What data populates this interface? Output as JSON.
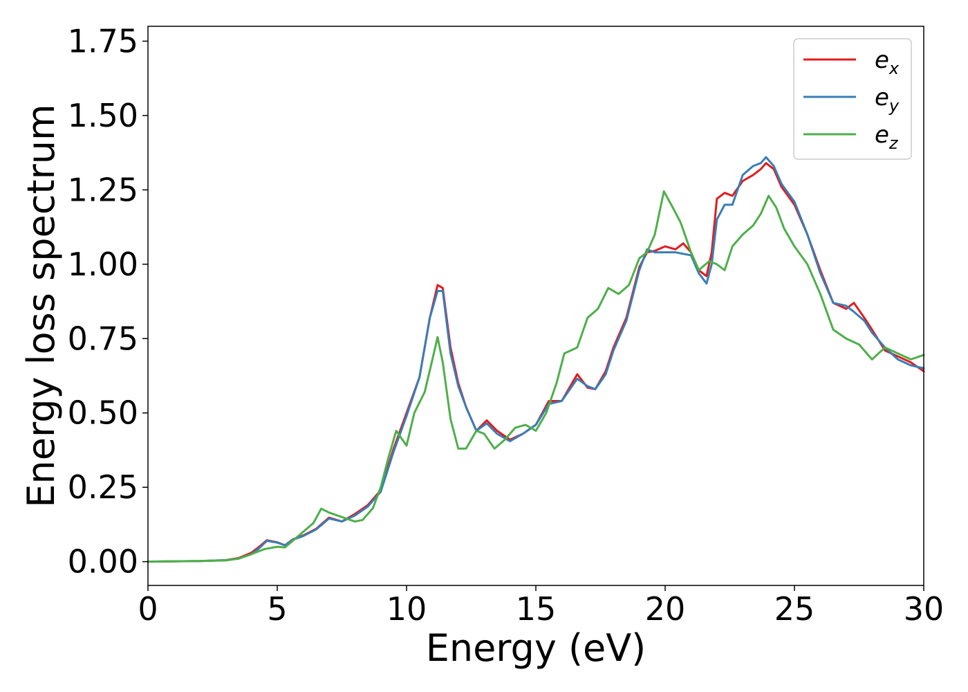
{
  "chart_data": {
    "type": "line",
    "title": "",
    "xlabel": "Energy (eV)",
    "ylabel": "Energy loss spectrum",
    "xlim": [
      0,
      30
    ],
    "ylim": [
      -0.08,
      1.8
    ],
    "xticks": [
      0,
      5,
      10,
      15,
      20,
      25,
      30
    ],
    "xtick_labels": [
      "0",
      "5",
      "10",
      "15",
      "20",
      "25",
      "30"
    ],
    "yticks": [
      0.0,
      0.25,
      0.5,
      0.75,
      1.0,
      1.25,
      1.5,
      1.75
    ],
    "ytick_labels": [
      "0.00",
      "0.25",
      "0.50",
      "0.75",
      "1.00",
      "1.25",
      "1.50",
      "1.75"
    ],
    "grid": false,
    "legend_position": "top-right",
    "series": [
      {
        "name": "e_x",
        "label_base": "e",
        "label_sub": "x",
        "color": "#e41a1c",
        "points": [
          [
            0,
            0
          ],
          [
            2,
            0.002
          ],
          [
            3,
            0.005
          ],
          [
            3.5,
            0.012
          ],
          [
            4,
            0.03
          ],
          [
            4.3,
            0.05
          ],
          [
            4.6,
            0.072
          ],
          [
            5,
            0.065
          ],
          [
            5.3,
            0.055
          ],
          [
            5.6,
            0.075
          ],
          [
            6,
            0.088
          ],
          [
            6.5,
            0.11
          ],
          [
            7,
            0.148
          ],
          [
            7.5,
            0.135
          ],
          [
            8,
            0.16
          ],
          [
            8.5,
            0.19
          ],
          [
            9,
            0.24
          ],
          [
            9.5,
            0.38
          ],
          [
            10,
            0.5
          ],
          [
            10.5,
            0.62
          ],
          [
            10.9,
            0.82
          ],
          [
            11.2,
            0.93
          ],
          [
            11.4,
            0.92
          ],
          [
            11.7,
            0.72
          ],
          [
            12,
            0.6
          ],
          [
            12.3,
            0.52
          ],
          [
            12.7,
            0.44
          ],
          [
            13.1,
            0.475
          ],
          [
            13.5,
            0.44
          ],
          [
            14,
            0.41
          ],
          [
            14.5,
            0.43
          ],
          [
            15,
            0.46
          ],
          [
            15.5,
            0.54
          ],
          [
            16,
            0.54
          ],
          [
            16.6,
            0.63
          ],
          [
            17,
            0.585
          ],
          [
            17.3,
            0.58
          ],
          [
            17.7,
            0.64
          ],
          [
            18,
            0.72
          ],
          [
            18.5,
            0.82
          ],
          [
            19,
            0.99
          ],
          [
            19.3,
            1.04
          ],
          [
            19.6,
            1.045
          ],
          [
            20,
            1.06
          ],
          [
            20.4,
            1.05
          ],
          [
            20.7,
            1.07
          ],
          [
            21,
            1.04
          ],
          [
            21.3,
            0.98
          ],
          [
            21.6,
            0.96
          ],
          [
            21.8,
            1.04
          ],
          [
            22,
            1.22
          ],
          [
            22.3,
            1.24
          ],
          [
            22.6,
            1.23
          ],
          [
            23,
            1.28
          ],
          [
            23.4,
            1.3
          ],
          [
            23.7,
            1.32
          ],
          [
            23.9,
            1.34
          ],
          [
            24.2,
            1.32
          ],
          [
            24.5,
            1.26
          ],
          [
            25,
            1.2
          ],
          [
            25.5,
            1.1
          ],
          [
            26,
            0.98
          ],
          [
            26.5,
            0.87
          ],
          [
            27,
            0.85
          ],
          [
            27.3,
            0.87
          ],
          [
            27.7,
            0.82
          ],
          [
            28,
            0.78
          ],
          [
            28.5,
            0.71
          ],
          [
            29,
            0.69
          ],
          [
            29.5,
            0.67
          ],
          [
            30,
            0.64
          ]
        ]
      },
      {
        "name": "e_y",
        "label_base": "e",
        "label_sub": "y",
        "color": "#377eb8",
        "points": [
          [
            0,
            0
          ],
          [
            2,
            0.002
          ],
          [
            3,
            0.005
          ],
          [
            3.5,
            0.01
          ],
          [
            4,
            0.025
          ],
          [
            4.3,
            0.045
          ],
          [
            4.6,
            0.07
          ],
          [
            5,
            0.064
          ],
          [
            5.3,
            0.055
          ],
          [
            5.6,
            0.074
          ],
          [
            6,
            0.086
          ],
          [
            6.5,
            0.108
          ],
          [
            7,
            0.145
          ],
          [
            7.5,
            0.135
          ],
          [
            8,
            0.155
          ],
          [
            8.5,
            0.185
          ],
          [
            9,
            0.235
          ],
          [
            9.5,
            0.37
          ],
          [
            10,
            0.49
          ],
          [
            10.5,
            0.62
          ],
          [
            10.9,
            0.82
          ],
          [
            11.2,
            0.91
          ],
          [
            11.4,
            0.91
          ],
          [
            11.7,
            0.7
          ],
          [
            12,
            0.59
          ],
          [
            12.3,
            0.52
          ],
          [
            12.7,
            0.44
          ],
          [
            13.1,
            0.465
          ],
          [
            13.5,
            0.43
          ],
          [
            14,
            0.405
          ],
          [
            14.5,
            0.43
          ],
          [
            15,
            0.46
          ],
          [
            15.5,
            0.53
          ],
          [
            16,
            0.54
          ],
          [
            16.6,
            0.615
          ],
          [
            17,
            0.59
          ],
          [
            17.3,
            0.58
          ],
          [
            17.7,
            0.63
          ],
          [
            18,
            0.71
          ],
          [
            18.5,
            0.81
          ],
          [
            19,
            0.98
          ],
          [
            19.3,
            1.05
          ],
          [
            19.6,
            1.04
          ],
          [
            20,
            1.04
          ],
          [
            20.4,
            1.04
          ],
          [
            20.7,
            1.035
          ],
          [
            21,
            1.03
          ],
          [
            21.3,
            0.97
          ],
          [
            21.6,
            0.935
          ],
          [
            21.8,
            1.0
          ],
          [
            22,
            1.15
          ],
          [
            22.3,
            1.2
          ],
          [
            22.6,
            1.2
          ],
          [
            23,
            1.3
          ],
          [
            23.4,
            1.33
          ],
          [
            23.7,
            1.34
          ],
          [
            23.9,
            1.36
          ],
          [
            24.2,
            1.33
          ],
          [
            24.5,
            1.27
          ],
          [
            25,
            1.21
          ],
          [
            25.5,
            1.1
          ],
          [
            26,
            0.97
          ],
          [
            26.5,
            0.87
          ],
          [
            27,
            0.86
          ],
          [
            27.3,
            0.84
          ],
          [
            27.7,
            0.81
          ],
          [
            28,
            0.77
          ],
          [
            28.5,
            0.72
          ],
          [
            29,
            0.68
          ],
          [
            29.5,
            0.66
          ],
          [
            30,
            0.65
          ]
        ]
      },
      {
        "name": "e_z",
        "label_base": "e",
        "label_sub": "z",
        "color": "#4daf4a",
        "points": [
          [
            0,
            0
          ],
          [
            2,
            0.002
          ],
          [
            3,
            0.004
          ],
          [
            3.5,
            0.01
          ],
          [
            4,
            0.025
          ],
          [
            4.5,
            0.042
          ],
          [
            5,
            0.05
          ],
          [
            5.3,
            0.048
          ],
          [
            5.6,
            0.07
          ],
          [
            6,
            0.1
          ],
          [
            6.4,
            0.13
          ],
          [
            6.7,
            0.178
          ],
          [
            7,
            0.165
          ],
          [
            7.5,
            0.15
          ],
          [
            8,
            0.135
          ],
          [
            8.3,
            0.14
          ],
          [
            8.7,
            0.18
          ],
          [
            9,
            0.25
          ],
          [
            9.3,
            0.35
          ],
          [
            9.6,
            0.44
          ],
          [
            10,
            0.39
          ],
          [
            10.3,
            0.5
          ],
          [
            10.7,
            0.57
          ],
          [
            11,
            0.68
          ],
          [
            11.2,
            0.755
          ],
          [
            11.4,
            0.67
          ],
          [
            11.7,
            0.48
          ],
          [
            12,
            0.38
          ],
          [
            12.3,
            0.38
          ],
          [
            12.7,
            0.44
          ],
          [
            13,
            0.43
          ],
          [
            13.4,
            0.38
          ],
          [
            13.8,
            0.41
          ],
          [
            14.2,
            0.45
          ],
          [
            14.6,
            0.46
          ],
          [
            15,
            0.44
          ],
          [
            15.4,
            0.5
          ],
          [
            15.8,
            0.6
          ],
          [
            16.1,
            0.7
          ],
          [
            16.6,
            0.72
          ],
          [
            17,
            0.82
          ],
          [
            17.4,
            0.85
          ],
          [
            17.8,
            0.92
          ],
          [
            18.2,
            0.9
          ],
          [
            18.6,
            0.93
          ],
          [
            19,
            1.02
          ],
          [
            19.3,
            1.04
          ],
          [
            19.6,
            1.1
          ],
          [
            19.95,
            1.245
          ],
          [
            20.3,
            1.19
          ],
          [
            20.6,
            1.14
          ],
          [
            21,
            1.04
          ],
          [
            21.3,
            0.98
          ],
          [
            21.7,
            1.01
          ],
          [
            22,
            1.0
          ],
          [
            22.3,
            0.98
          ],
          [
            22.6,
            1.06
          ],
          [
            23,
            1.1
          ],
          [
            23.4,
            1.13
          ],
          [
            23.7,
            1.17
          ],
          [
            24,
            1.23
          ],
          [
            24.3,
            1.19
          ],
          [
            24.6,
            1.12
          ],
          [
            25,
            1.06
          ],
          [
            25.5,
            1.0
          ],
          [
            26,
            0.9
          ],
          [
            26.5,
            0.78
          ],
          [
            27,
            0.75
          ],
          [
            27.5,
            0.73
          ],
          [
            28,
            0.68
          ],
          [
            28.5,
            0.72
          ],
          [
            29,
            0.7
          ],
          [
            29.5,
            0.68
          ],
          [
            30,
            0.695
          ]
        ]
      }
    ]
  }
}
